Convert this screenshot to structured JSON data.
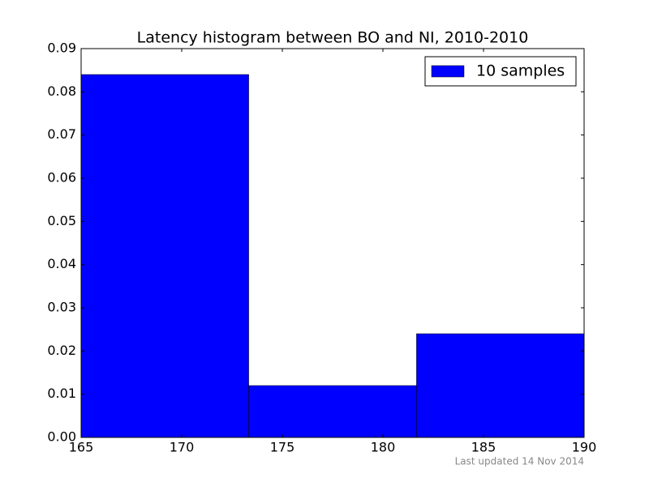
{
  "chart_data": {
    "type": "histogram",
    "title": "Latency histogram between BO and NI, 2010-2010",
    "bins": [
      165,
      173.33,
      181.67,
      190
    ],
    "series": [
      {
        "name": "10 samples",
        "color": "#0000ff",
        "values": [
          0.084,
          0.012,
          0.024
        ]
      }
    ],
    "xlim": [
      165,
      190
    ],
    "xticks": [
      165,
      170,
      175,
      180,
      185,
      190
    ],
    "ylim": [
      0,
      0.09
    ],
    "yticks": [
      {
        "value": 0,
        "label": "0.00"
      },
      0.01,
      0.02,
      0.03,
      0.04,
      0.05,
      0.06,
      0.07,
      0.08,
      0.09
    ],
    "legend": "upper right",
    "annotation": "Last updated 14 Nov 2014"
  }
}
